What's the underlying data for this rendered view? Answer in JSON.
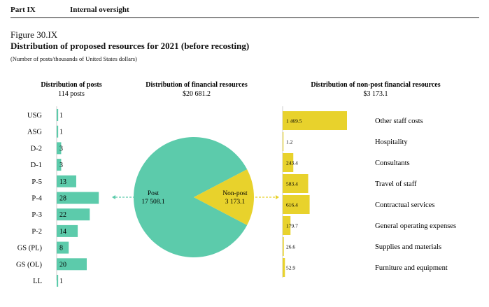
{
  "header": {
    "part": "Part IX",
    "title": "Internal oversight"
  },
  "figure": {
    "label": "Figure 30.IX",
    "title": "Distribution of proposed resources for 2021 (before recosting)",
    "subtitle": "(Number of posts/thousands of United States dollars)"
  },
  "colors": {
    "post": "#5ccbab",
    "nonpost": "#e8d22c",
    "post_dash": "#5ccbab",
    "nonpost_dash": "#e8d22c"
  },
  "chart_data": [
    {
      "type": "bar",
      "orientation": "horizontal",
      "title": "Distribution of posts",
      "subtitle": "114 posts",
      "categories": [
        "USG",
        "ASG",
        "D-2",
        "D-1",
        "P-5",
        "P-4",
        "P-3",
        "P-2",
        "GS (PL)",
        "GS (OL)",
        "LL"
      ],
      "values": [
        1,
        1,
        3,
        3,
        13,
        28,
        22,
        14,
        8,
        20,
        1
      ],
      "labels": [
        "1",
        "1",
        "3",
        "3",
        "13",
        "28",
        "22",
        "14",
        "8",
        "20",
        "1"
      ]
    },
    {
      "type": "pie",
      "title": "Distribution of financial resources",
      "subtitle": "$20 681.2",
      "slices": [
        {
          "name": "Post",
          "value": 17508.1,
          "label": "17 508.1"
        },
        {
          "name": "Non-post",
          "value": 3173.1,
          "label": "3 173.1"
        }
      ]
    },
    {
      "type": "bar",
      "orientation": "horizontal",
      "title": "Distribution of non-post financial resources",
      "subtitle": "$3 173.1",
      "categories": [
        "Other staff costs",
        "Hospitality",
        "Consultants",
        "Travel of staff",
        "Contractual services",
        "General operating expenses",
        "Supplies and materials",
        "Furniture and equipment"
      ],
      "values": [
        1469.5,
        1.2,
        243.4,
        583.4,
        616.4,
        179.7,
        26.6,
        52.9
      ],
      "labels": [
        "1 469.5",
        "1.2",
        "243.4",
        "583.4",
        "616.4",
        "179.7",
        "26.6",
        "52.9"
      ]
    }
  ]
}
